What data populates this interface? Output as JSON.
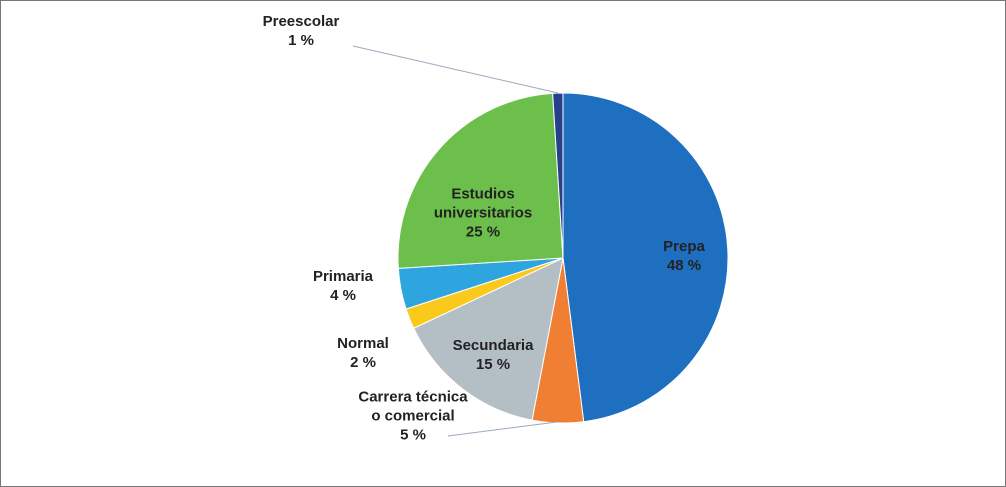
{
  "chart_data": {
    "type": "pie",
    "categories": [
      "Prepa",
      "Carrera técnica o comercial",
      "Secundaria",
      "Normal",
      "Primaria",
      "Estudios universitarios",
      "Preescolar"
    ],
    "values": [
      48,
      5,
      15,
      2,
      4,
      25,
      1
    ],
    "value_labels": [
      "48 %",
      "5 %",
      "15 %",
      "2 %",
      "4 %",
      "25 %",
      "1 %"
    ],
    "colors": [
      "#1f6fc0",
      "#f07f34",
      "#b4bec5",
      "#f9c91c",
      "#2fa5e0",
      "#6cbf4a",
      "#24418a"
    ]
  }
}
